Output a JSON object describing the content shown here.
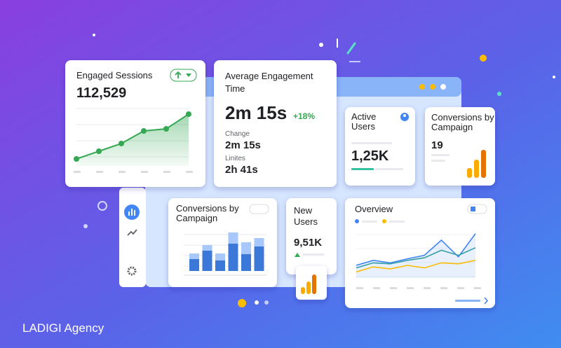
{
  "brand": "LADIGI Agency",
  "cards": {
    "engaged_sessions": {
      "title": "Engaged Sessions",
      "value": "112,529",
      "chart": {
        "type": "line",
        "color": "#34a853",
        "values": [
          18,
          29,
          40,
          58,
          61,
          82
        ],
        "ylim": [
          0,
          100
        ]
      }
    },
    "avg_engagement": {
      "title_line1": "Average Engagement",
      "title_line2": "Time",
      "value": "2m 15s",
      "change": "+18%",
      "rows": [
        {
          "label": "Change",
          "value": "2m 15s"
        },
        {
          "label": "Linites",
          "value": "2h 41s"
        }
      ]
    },
    "active_users": {
      "title_line1": "Active",
      "title_line2": "Users",
      "value": "1,25K"
    },
    "conversions_small": {
      "title_line1": "Conversions by",
      "title_line2": "Campaign",
      "value": "19"
    },
    "conversions_bars": {
      "title_line1": "Conversions by",
      "title_line2": "Campaign",
      "chart": {
        "type": "stacked-bar",
        "ylim": [
          0,
          60
        ],
        "series": [
          {
            "color": "#3c78d8",
            "values": [
              17,
              29,
              15,
              39,
              24,
              35
            ]
          },
          {
            "color": "#a8c7fa",
            "values": [
              8,
              8,
              10,
              16,
              17,
              12
            ]
          }
        ]
      }
    },
    "new_users": {
      "title_line1": "New",
      "title_line2": "Users",
      "value": "9,51K"
    },
    "overview": {
      "title": "Overview",
      "chart": {
        "type": "line",
        "ylim": [
          0,
          100
        ],
        "series": [
          {
            "color": "#4285f4",
            "values": [
              25,
              35,
              30,
              38,
              45,
              75,
              42,
              88
            ]
          },
          {
            "color": "#34a0a4",
            "values": [
              20,
              30,
              28,
              35,
              40,
              55,
              45,
              60
            ]
          },
          {
            "color": "#fbbc04",
            "values": [
              12,
              22,
              18,
              25,
              20,
              30,
              28,
              35
            ]
          }
        ]
      }
    }
  }
}
